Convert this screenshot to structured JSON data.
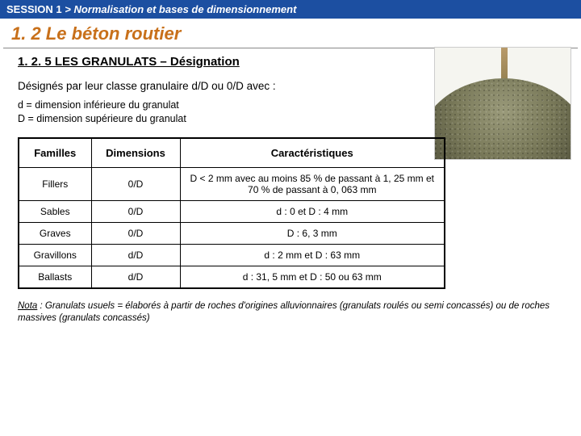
{
  "header": {
    "session": "SESSION 1",
    "sep": " > ",
    "topic": "Normalisation et bases de dimensionnement"
  },
  "title": "1. 2 Le béton routier",
  "subtitle": "1. 2. 5 LES GRANULATS – Désignation",
  "intro": "Désignés par leur classe granulaire d/D ou 0/D avec :",
  "defs": {
    "d": "d = dimension inférieure du granulat",
    "D": "D = dimension supérieure du granulat"
  },
  "table": {
    "headers": [
      "Familles",
      "Dimensions",
      "Caractéristiques"
    ],
    "rows": [
      [
        "Fillers",
        "0/D",
        "D < 2 mm avec au moins 85 % de passant à 1, 25 mm et 70 % de passant à 0, 063 mm"
      ],
      [
        "Sables",
        "0/D",
        "d : 0 et D : 4 mm"
      ],
      [
        "Graves",
        "0/D",
        "D : 6, 3 mm"
      ],
      [
        "Gravillons",
        "d/D",
        "d : 2 mm et D : 63 mm"
      ],
      [
        "Ballasts",
        "d/D",
        "d : 31, 5 mm et D : 50 ou 63 mm"
      ]
    ]
  },
  "nota": {
    "label": "Nota",
    "text": " : Granulats usuels = élaborés à partir de roches d'origines alluvionnaires (granulats roulés ou semi concassés) ou de roches massives (granulats concassés)"
  },
  "colors": {
    "header_bg": "#1c4fa1",
    "title_color": "#c8701a"
  }
}
